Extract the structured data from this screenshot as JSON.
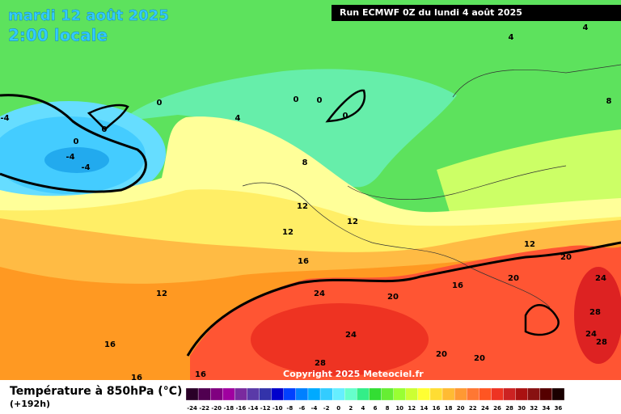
{
  "header": {
    "date": "mardi 12 août 2025",
    "time": "2:00 locale",
    "run": "Run ECMWF 0Z du lundi 4 août 2025"
  },
  "map": {
    "contour_labels": [
      -4,
      0,
      0,
      0,
      -4,
      -4,
      0,
      0,
      0,
      4,
      4,
      4,
      8,
      8,
      12,
      12,
      12,
      12,
      16,
      20,
      24,
      20,
      16,
      24,
      20,
      12,
      28,
      24,
      24,
      28,
      16,
      20,
      20,
      28,
      16,
      16
    ],
    "copyright": "Copyright 2025 Meteociel.fr"
  },
  "legend": {
    "title": "Température à 850hPa (°C)",
    "subtitle": "(+192h)",
    "ticks": [
      -24,
      -22,
      -20,
      -18,
      -16,
      -14,
      -12,
      -10,
      -8,
      -6,
      -4,
      -2,
      0,
      2,
      4,
      6,
      8,
      10,
      12,
      14,
      16,
      18,
      20,
      22,
      24,
      26,
      28,
      30,
      32,
      34,
      36
    ],
    "colors": [
      "#2a0028",
      "#500050",
      "#800080",
      "#a000a0",
      "#7a2a9e",
      "#5a3aa8",
      "#3333aa",
      "#0000cc",
      "#0040ff",
      "#0080ff",
      "#00aaff",
      "#33ccff",
      "#66eeff",
      "#66ffcc",
      "#33ee88",
      "#33dd33",
      "#66ee33",
      "#99ff33",
      "#ccff33",
      "#ffff33",
      "#ffdd33",
      "#ffbb33",
      "#ff9933",
      "#ff7733",
      "#ff5522",
      "#ee3322",
      "#cc2222",
      "#aa1111",
      "#881111",
      "#550000",
      "#1a0000"
    ]
  }
}
